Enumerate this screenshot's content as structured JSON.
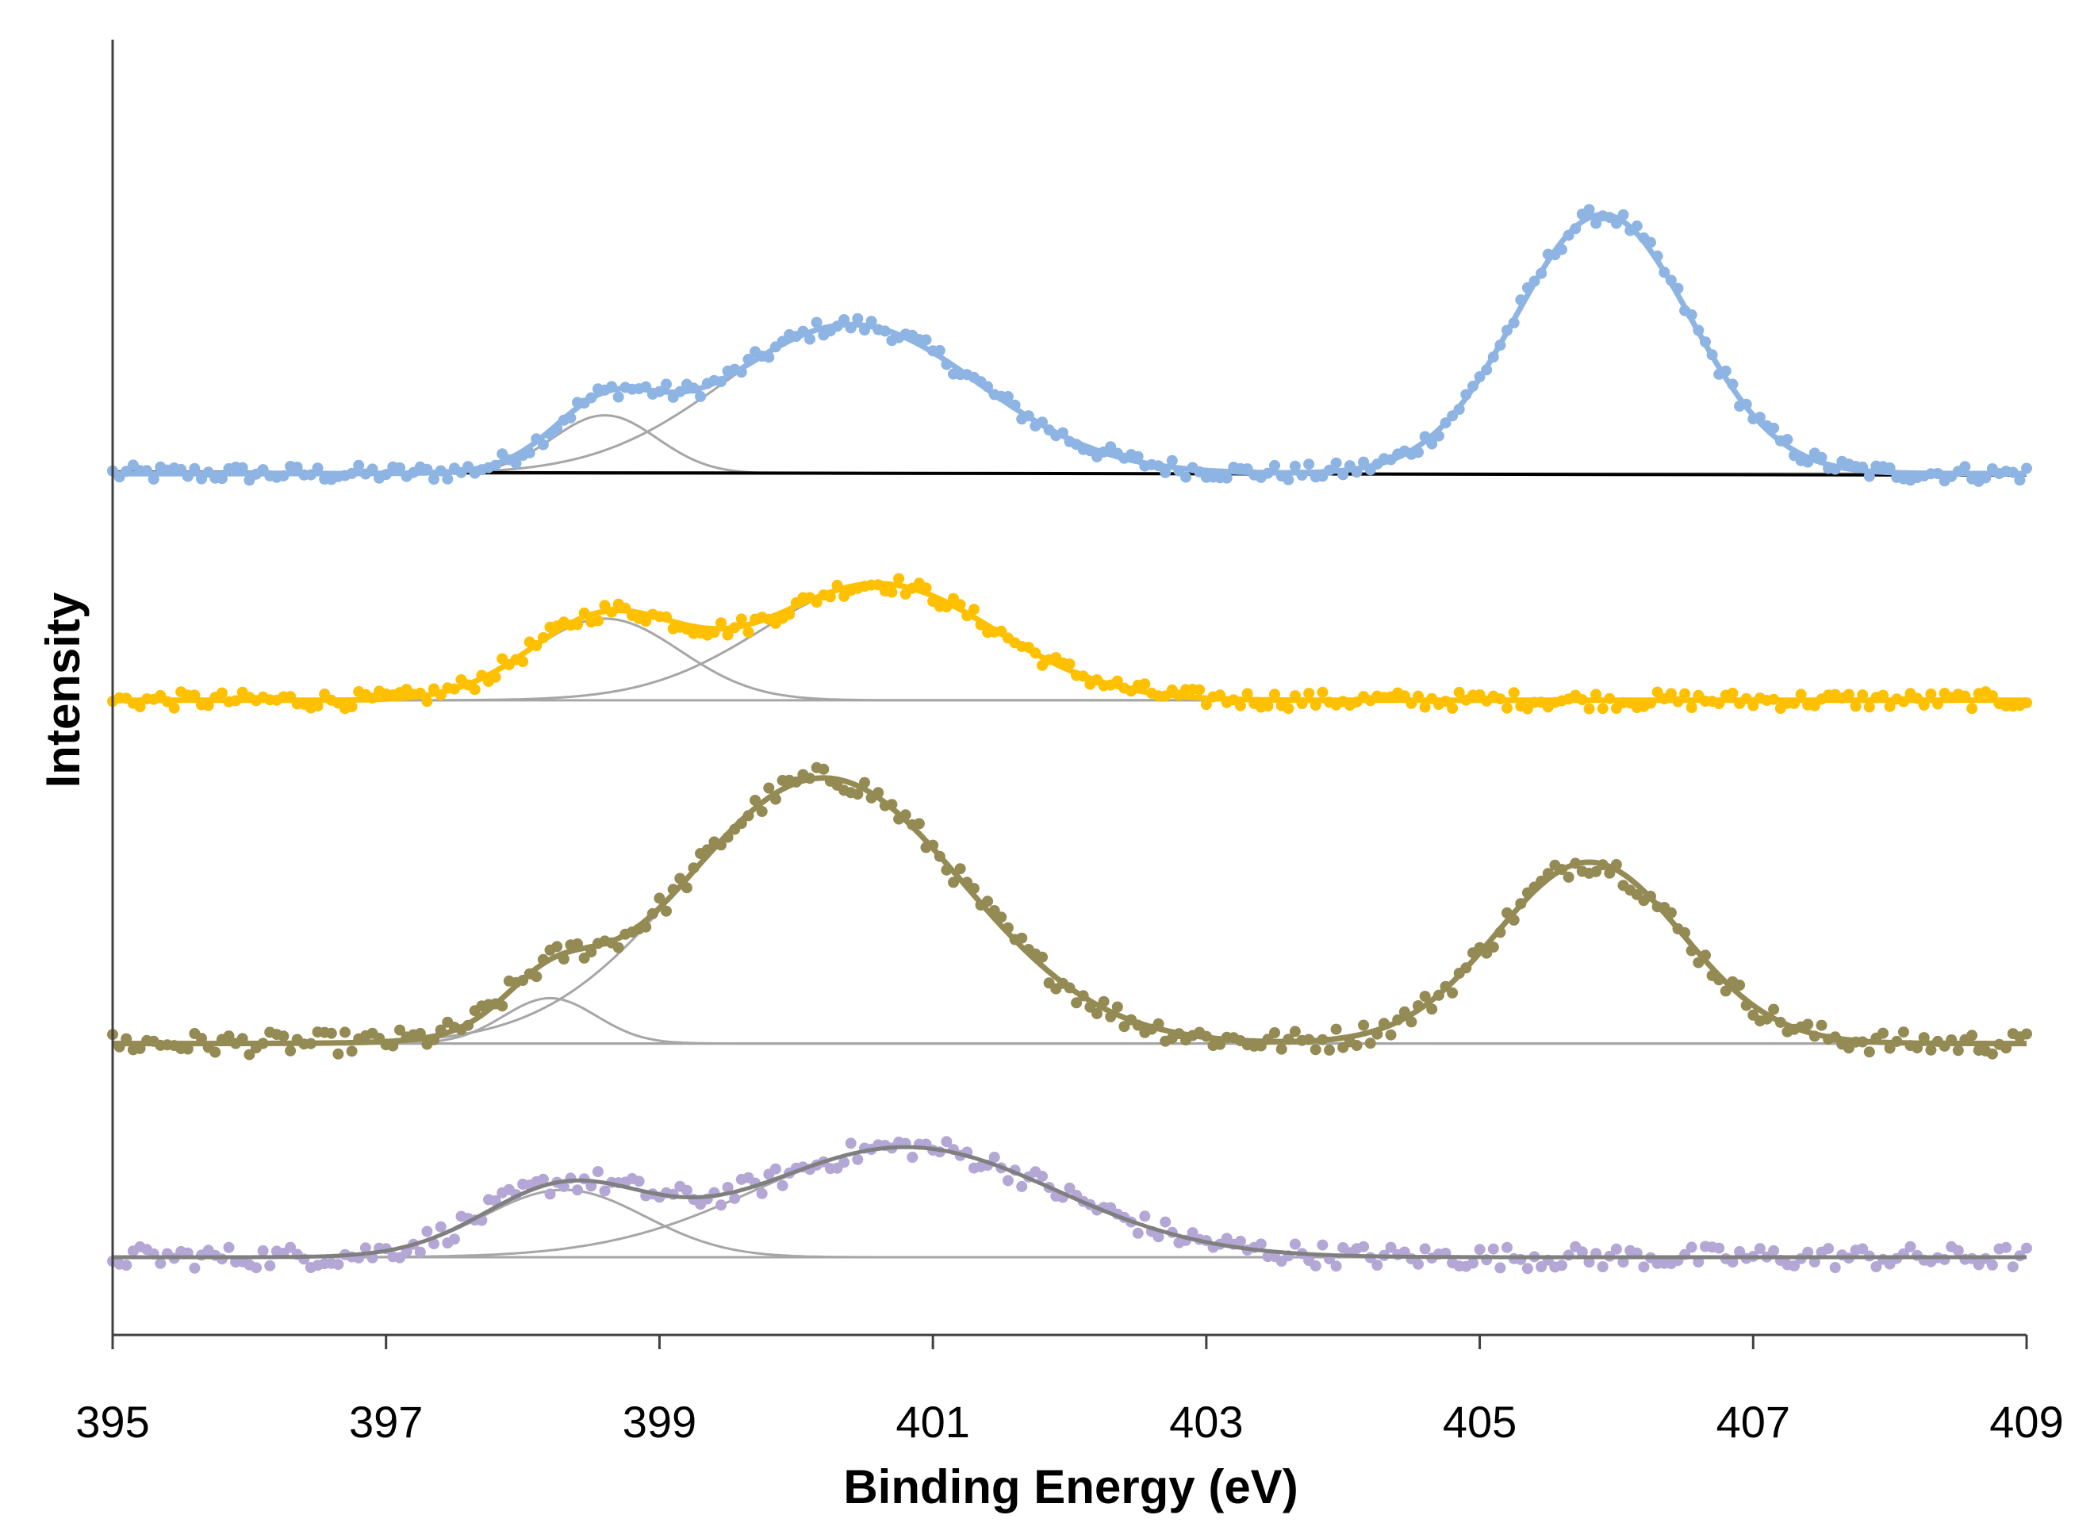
{
  "chart_data": {
    "type": "line",
    "title": "",
    "xlabel": "Binding Energy (eV)",
    "ylabel": "Intensity",
    "xlim": [
      395,
      409
    ],
    "ylim": [
      0,
      1
    ],
    "x_ticks": [
      "395",
      "397",
      "399",
      "401",
      "403",
      "405",
      "407",
      "409"
    ],
    "y_ticks": [],
    "grid": false,
    "legend": "none",
    "colors": {
      "blue": "#8DB4E2",
      "orange": "#FFC000",
      "olive": "#948A54",
      "purple": "#B4A7D6",
      "component": "#A6A6A6",
      "baseline": "#000000",
      "purple_fit": "#7F7F7F"
    },
    "series": [
      {
        "name": "blue",
        "baseline_y": 0.665,
        "noise": 0.003,
        "components": [
          {
            "center": 398.6,
            "fwhm": 0.9,
            "height": 0.045
          },
          {
            "center": 400.4,
            "fwhm": 2.2,
            "height": 0.115
          },
          {
            "center": 405.9,
            "fwhm": 1.5,
            "height": 0.2
          }
        ]
      },
      {
        "name": "orange",
        "baseline_y": 0.49,
        "noise": 0.003,
        "components": [
          {
            "center": 398.6,
            "fwhm": 1.3,
            "height": 0.063
          },
          {
            "center": 400.6,
            "fwhm": 2.0,
            "height": 0.09
          }
        ]
      },
      {
        "name": "olive",
        "baseline_y": 0.225,
        "noise": 0.004,
        "components": [
          {
            "center": 398.2,
            "fwhm": 0.8,
            "height": 0.035
          },
          {
            "center": 400.2,
            "fwhm": 2.4,
            "height": 0.205
          },
          {
            "center": 405.8,
            "fwhm": 1.6,
            "height": 0.14
          }
        ]
      },
      {
        "name": "purple",
        "baseline_y": 0.06,
        "noise": 0.004,
        "components": [
          {
            "center": 398.3,
            "fwhm": 1.4,
            "height": 0.052
          },
          {
            "center": 400.8,
            "fwhm": 2.6,
            "height": 0.085
          }
        ]
      }
    ]
  }
}
